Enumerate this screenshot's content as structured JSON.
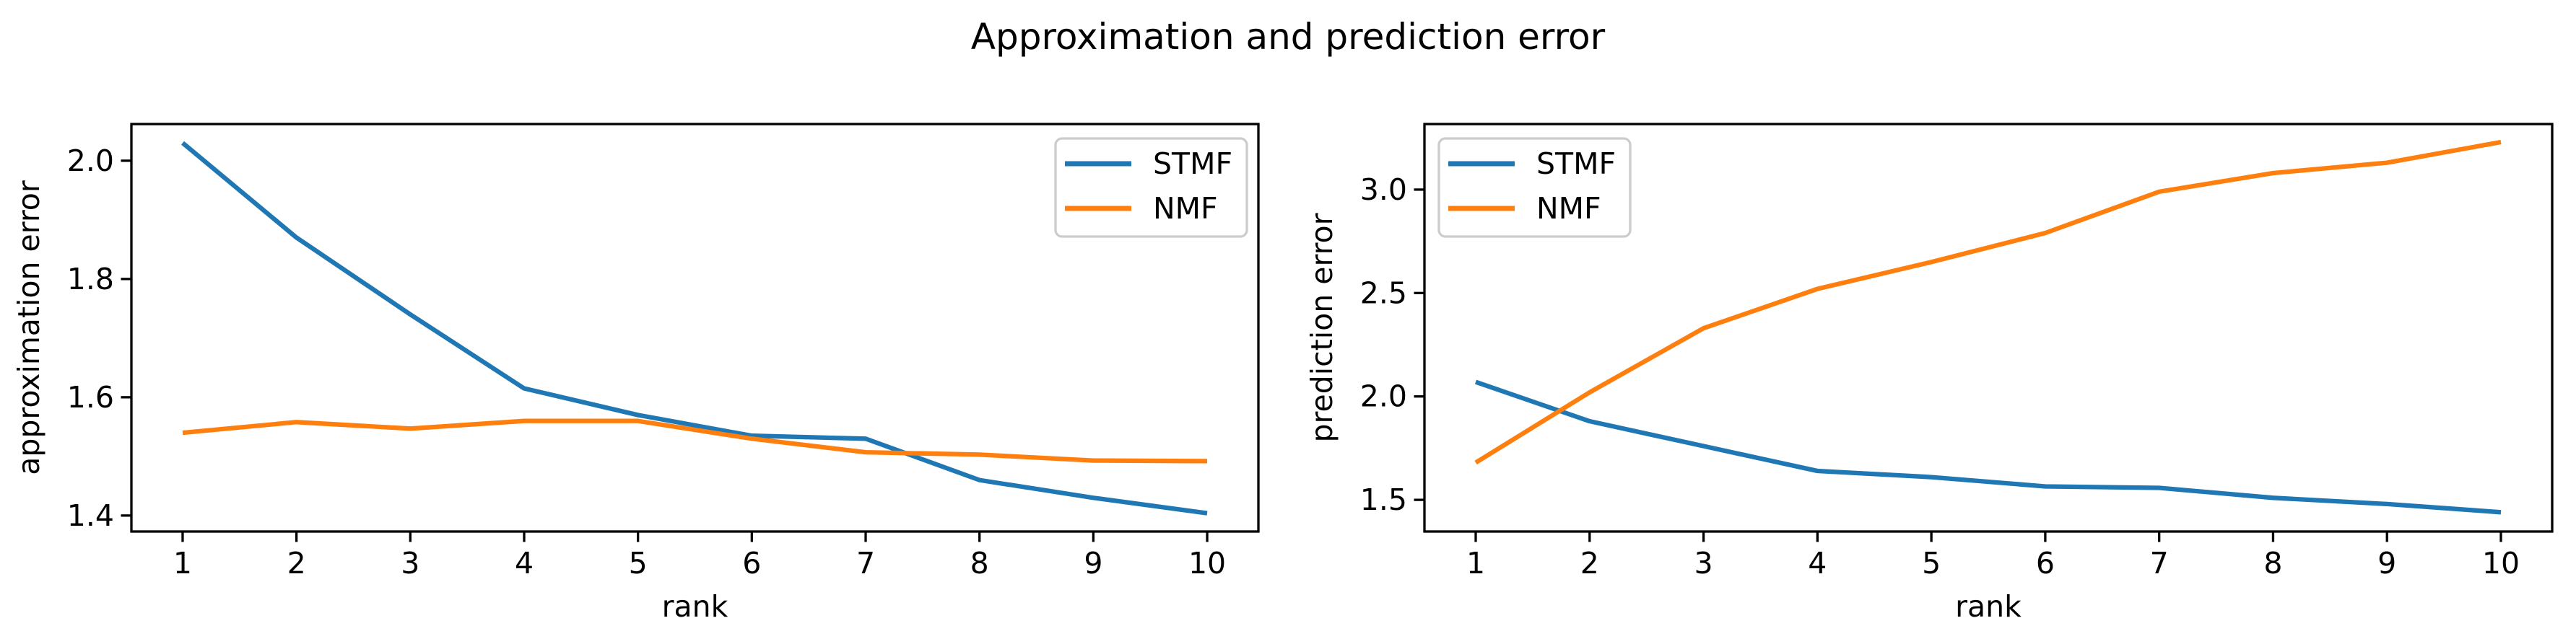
{
  "figure": {
    "title": "Approximation and prediction error",
    "background_color": "#ffffff"
  },
  "palette": {
    "stmf_color": "#1f77b4",
    "nmf_color": "#ff7f0e",
    "axis_color": "#000000",
    "legend_border_color": "#cccccc",
    "legend_fill_color": "#ffffff"
  },
  "chart_data": [
    {
      "id": "approximation-error",
      "type": "line",
      "title": "",
      "xlabel": "rank",
      "ylabel": "approximation error",
      "grid": false,
      "legend_position": "upper right",
      "x": [
        1,
        2,
        3,
        4,
        5,
        6,
        7,
        8,
        9,
        10
      ],
      "xticks": [
        1,
        2,
        3,
        4,
        5,
        6,
        7,
        8,
        9,
        10
      ],
      "xticklabels": [
        "1",
        "2",
        "3",
        "4",
        "5",
        "6",
        "7",
        "8",
        "9",
        "10"
      ],
      "yticks": [
        1.4,
        1.6,
        1.8,
        2.0
      ],
      "yticklabels": [
        "1.4",
        "1.6",
        "1.8",
        "2.0"
      ],
      "xlim": [
        0.55,
        10.45
      ],
      "ylim": [
        1.373,
        2.062
      ],
      "series": [
        {
          "name": "STMF",
          "color": "#1f77b4",
          "values": [
            2.03,
            1.87,
            1.74,
            1.615,
            1.57,
            1.535,
            1.53,
            1.46,
            1.43,
            1.404
          ]
        },
        {
          "name": "NMF",
          "color": "#ff7f0e",
          "values": [
            1.54,
            1.558,
            1.547,
            1.56,
            1.56,
            1.53,
            1.507,
            1.503,
            1.493,
            1.492
          ]
        }
      ]
    },
    {
      "id": "prediction-error",
      "type": "line",
      "title": "",
      "xlabel": "rank",
      "ylabel": "prediction error",
      "grid": false,
      "legend_position": "upper left",
      "x": [
        1,
        2,
        3,
        4,
        5,
        6,
        7,
        8,
        9,
        10
      ],
      "xticks": [
        1,
        2,
        3,
        4,
        5,
        6,
        7,
        8,
        9,
        10
      ],
      "xticklabels": [
        "1",
        "2",
        "3",
        "4",
        "5",
        "6",
        "7",
        "8",
        "9",
        "10"
      ],
      "yticks": [
        1.5,
        2.0,
        2.5,
        3.0
      ],
      "yticklabels": [
        "1.5",
        "2.0",
        "2.5",
        "3.0"
      ],
      "xlim": [
        0.55,
        10.45
      ],
      "ylim": [
        1.347,
        3.317
      ],
      "series": [
        {
          "name": "STMF",
          "color": "#1f77b4",
          "values": [
            2.07,
            1.88,
            1.76,
            1.64,
            1.61,
            1.565,
            1.558,
            1.51,
            1.48,
            1.44
          ]
        },
        {
          "name": "NMF",
          "color": "#ff7f0e",
          "values": [
            1.68,
            2.02,
            2.33,
            2.52,
            2.65,
            2.79,
            2.99,
            3.08,
            3.13,
            3.23
          ]
        }
      ]
    }
  ]
}
